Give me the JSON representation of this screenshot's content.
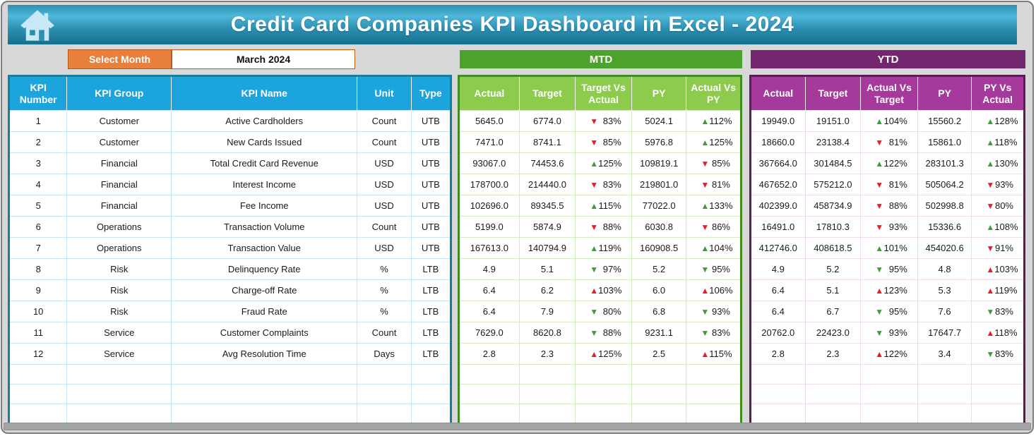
{
  "app": {
    "title": "Credit Card Companies KPI Dashboard in Excel - 2024"
  },
  "controls": {
    "select_month_label": "Select Month",
    "selected_month": "March 2024"
  },
  "sections": {
    "mtd_label": "MTD",
    "ytd_label": "YTD"
  },
  "colors": {
    "banner_blue": "#2d8fb0",
    "header_blue": "#1ca4dd",
    "mtd_green": "#4ca32c",
    "mtd_header_green": "#8ccb4b",
    "ytd_purple": "#73266e",
    "ytd_header_magenta": "#a63a9c",
    "select_orange": "#e8803c",
    "arrow_green": "#3f9e33",
    "arrow_red": "#ea1c1c"
  },
  "table": {
    "info_headers": [
      "KPI Number",
      "KPI Group",
      "KPI Name",
      "Unit",
      "Type"
    ],
    "mtd_headers": [
      "Actual",
      "Target",
      "Target Vs Actual",
      "PY",
      "Actual Vs PY"
    ],
    "ytd_headers": [
      "Actual",
      "Target",
      "Actual Vs Target",
      "PY",
      "PY Vs Actual"
    ],
    "empty_rows": 3,
    "rows": [
      {
        "num": "1",
        "group": "Customer",
        "name": "Active Cardholders",
        "unit": "Count",
        "type": "UTB",
        "mtd": {
          "actual": "5645.0",
          "target": "6774.0",
          "tva": {
            "v": "83%",
            "a": "down-red"
          },
          "py": "5024.1",
          "avp": {
            "v": "112%",
            "a": "up-green"
          }
        },
        "ytd": {
          "actual": "19949.0",
          "target": "19151.0",
          "avt": {
            "v": "104%",
            "a": "up-green"
          },
          "py": "15560.2",
          "pva": {
            "v": "128%",
            "a": "up-green"
          }
        }
      },
      {
        "num": "2",
        "group": "Customer",
        "name": "New Cards Issued",
        "unit": "Count",
        "type": "UTB",
        "mtd": {
          "actual": "7471.0",
          "target": "8741.1",
          "tva": {
            "v": "85%",
            "a": "down-red"
          },
          "py": "5976.8",
          "avp": {
            "v": "125%",
            "a": "up-green"
          }
        },
        "ytd": {
          "actual": "18660.0",
          "target": "23138.4",
          "avt": {
            "v": "81%",
            "a": "down-red"
          },
          "py": "15861.0",
          "pva": {
            "v": "118%",
            "a": "up-green"
          }
        }
      },
      {
        "num": "3",
        "group": "Financial",
        "name": "Total Credit Card Revenue",
        "unit": "USD",
        "type": "UTB",
        "mtd": {
          "actual": "93067.0",
          "target": "74453.6",
          "tva": {
            "v": "125%",
            "a": "up-green"
          },
          "py": "109819.1",
          "avp": {
            "v": "85%",
            "a": "down-red"
          }
        },
        "ytd": {
          "actual": "367664.0",
          "target": "301484.5",
          "avt": {
            "v": "122%",
            "a": "up-green"
          },
          "py": "283101.3",
          "pva": {
            "v": "130%",
            "a": "up-green"
          }
        }
      },
      {
        "num": "4",
        "group": "Financial",
        "name": "Interest Income",
        "unit": "USD",
        "type": "UTB",
        "mtd": {
          "actual": "178700.0",
          "target": "214440.0",
          "tva": {
            "v": "83%",
            "a": "down-red"
          },
          "py": "219801.0",
          "avp": {
            "v": "81%",
            "a": "down-red"
          }
        },
        "ytd": {
          "actual": "467652.0",
          "target": "575212.0",
          "avt": {
            "v": "81%",
            "a": "down-red"
          },
          "py": "505064.2",
          "pva": {
            "v": "93%",
            "a": "down-red"
          }
        }
      },
      {
        "num": "5",
        "group": "Financial",
        "name": "Fee Income",
        "unit": "USD",
        "type": "UTB",
        "mtd": {
          "actual": "102696.0",
          "target": "89345.5",
          "tva": {
            "v": "115%",
            "a": "up-green"
          },
          "py": "77022.0",
          "avp": {
            "v": "133%",
            "a": "up-green"
          }
        },
        "ytd": {
          "actual": "402399.0",
          "target": "458734.9",
          "avt": {
            "v": "88%",
            "a": "down-red"
          },
          "py": "502998.8",
          "pva": {
            "v": "80%",
            "a": "down-red"
          }
        }
      },
      {
        "num": "6",
        "group": "Operations",
        "name": "Transaction Volume",
        "unit": "Count",
        "type": "UTB",
        "mtd": {
          "actual": "5199.0",
          "target": "5874.9",
          "tva": {
            "v": "88%",
            "a": "down-red"
          },
          "py": "6030.8",
          "avp": {
            "v": "86%",
            "a": "down-red"
          }
        },
        "ytd": {
          "actual": "16491.0",
          "target": "17810.3",
          "avt": {
            "v": "93%",
            "a": "down-red"
          },
          "py": "15336.6",
          "pva": {
            "v": "108%",
            "a": "up-green"
          }
        }
      },
      {
        "num": "7",
        "group": "Operations",
        "name": "Transaction Value",
        "unit": "USD",
        "type": "UTB",
        "mtd": {
          "actual": "167613.0",
          "target": "140794.9",
          "tva": {
            "v": "119%",
            "a": "up-green"
          },
          "py": "160908.5",
          "avp": {
            "v": "104%",
            "a": "up-green"
          }
        },
        "ytd": {
          "actual": "412746.0",
          "target": "408618.5",
          "avt": {
            "v": "101%",
            "a": "up-green"
          },
          "py": "454020.6",
          "pva": {
            "v": "91%",
            "a": "down-red"
          }
        }
      },
      {
        "num": "8",
        "group": "Risk",
        "name": "Delinquency Rate",
        "unit": "%",
        "type": "LTB",
        "mtd": {
          "actual": "4.9",
          "target": "5.1",
          "tva": {
            "v": "97%",
            "a": "down-green"
          },
          "py": "5.2",
          "avp": {
            "v": "95%",
            "a": "down-green"
          }
        },
        "ytd": {
          "actual": "4.9",
          "target": "5.2",
          "avt": {
            "v": "95%",
            "a": "down-green"
          },
          "py": "4.8",
          "pva": {
            "v": "103%",
            "a": "up-red"
          }
        }
      },
      {
        "num": "9",
        "group": "Risk",
        "name": "Charge-off Rate",
        "unit": "%",
        "type": "LTB",
        "mtd": {
          "actual": "6.4",
          "target": "6.2",
          "tva": {
            "v": "103%",
            "a": "up-red"
          },
          "py": "6.0",
          "avp": {
            "v": "106%",
            "a": "up-red"
          }
        },
        "ytd": {
          "actual": "6.4",
          "target": "5.1",
          "avt": {
            "v": "123%",
            "a": "up-red"
          },
          "py": "5.3",
          "pva": {
            "v": "119%",
            "a": "up-red"
          }
        }
      },
      {
        "num": "10",
        "group": "Risk",
        "name": "Fraud Rate",
        "unit": "%",
        "type": "LTB",
        "mtd": {
          "actual": "6.4",
          "target": "7.9",
          "tva": {
            "v": "80%",
            "a": "down-green"
          },
          "py": "6.8",
          "avp": {
            "v": "93%",
            "a": "down-green"
          }
        },
        "ytd": {
          "actual": "6.4",
          "target": "6.7",
          "avt": {
            "v": "95%",
            "a": "down-green"
          },
          "py": "7.6",
          "pva": {
            "v": "83%",
            "a": "down-green"
          }
        }
      },
      {
        "num": "11",
        "group": "Service",
        "name": "Customer Complaints",
        "unit": "Count",
        "type": "LTB",
        "mtd": {
          "actual": "7629.0",
          "target": "8620.8",
          "tva": {
            "v": "88%",
            "a": "down-green"
          },
          "py": "9231.1",
          "avp": {
            "v": "83%",
            "a": "down-green"
          }
        },
        "ytd": {
          "actual": "20762.0",
          "target": "22423.0",
          "avt": {
            "v": "93%",
            "a": "down-green"
          },
          "py": "17647.7",
          "pva": {
            "v": "118%",
            "a": "up-red"
          }
        }
      },
      {
        "num": "12",
        "group": "Service",
        "name": "Avg Resolution Time",
        "unit": "Days",
        "type": "LTB",
        "mtd": {
          "actual": "2.8",
          "target": "2.3",
          "tva": {
            "v": "125%",
            "a": "up-red"
          },
          "py": "2.5",
          "avp": {
            "v": "115%",
            "a": "up-red"
          }
        },
        "ytd": {
          "actual": "2.8",
          "target": "2.3",
          "avt": {
            "v": "122%",
            "a": "up-red"
          },
          "py": "3.4",
          "pva": {
            "v": "83%",
            "a": "down-green"
          }
        }
      }
    ]
  }
}
